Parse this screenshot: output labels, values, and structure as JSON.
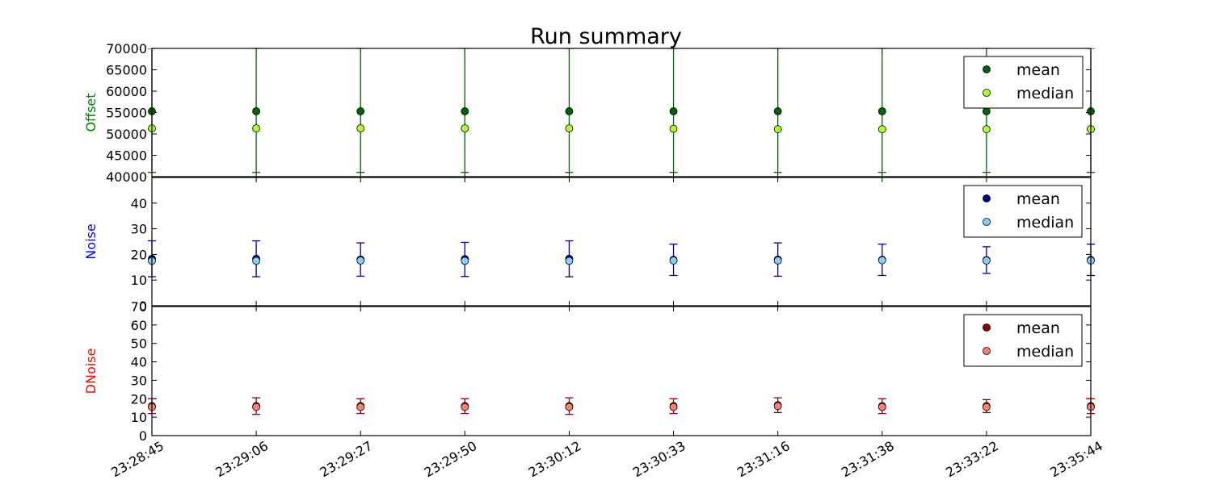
{
  "title": "Run summary",
  "chart_data": [
    {
      "type": "scatter",
      "ylabel": "Offset",
      "ylabel_color": "#008000",
      "ylim": [
        40000,
        70000
      ],
      "yticks": [
        40000,
        45000,
        50000,
        55000,
        60000,
        65000,
        70000
      ],
      "error_color": "#006400",
      "x": [
        "23:28:45",
        "23:29:06",
        "23:29:27",
        "23:29:50",
        "23:30:12",
        "23:30:33",
        "23:31:16",
        "23:31:38",
        "23:33:22",
        "23:35:44"
      ],
      "series": [
        {
          "name": "mean",
          "color": "#006400",
          "values": [
            55300,
            55300,
            55300,
            55300,
            55300,
            55300,
            55300,
            55300,
            55300,
            55300
          ],
          "err_low": [
            41000,
            41000,
            41000,
            41000,
            41000,
            41000,
            41000,
            41000,
            41000,
            41000
          ],
          "err_high": [
            70000,
            70000,
            70000,
            70000,
            70000,
            70000,
            70000,
            70000,
            70000,
            70000
          ]
        },
        {
          "name": "median",
          "color": "#adff2f",
          "values": [
            51300,
            51300,
            51300,
            51300,
            51300,
            51200,
            51100,
            51100,
            51100,
            51100
          ]
        }
      ],
      "legend": "top-right",
      "grid": false
    },
    {
      "type": "scatter",
      "ylabel": "Noise",
      "ylabel_color": "#0000ff",
      "ylim": [
        0,
        50
      ],
      "yticks": [
        0,
        10,
        20,
        30,
        40
      ],
      "error_color": "#00008b",
      "x": [
        "23:28:45",
        "23:29:06",
        "23:29:27",
        "23:29:50",
        "23:30:12",
        "23:30:33",
        "23:31:16",
        "23:31:38",
        "23:33:22",
        "23:35:44"
      ],
      "series": [
        {
          "name": "mean",
          "color": "#00008b",
          "values": [
            18.3,
            18.3,
            18.0,
            18.2,
            18.3,
            17.9,
            18.0,
            17.9,
            17.8,
            17.9
          ],
          "err_low": [
            11.3,
            11.3,
            11.5,
            11.4,
            11.3,
            11.8,
            11.5,
            11.8,
            12.6,
            11.8
          ],
          "err_high": [
            25.3,
            25.3,
            24.5,
            24.7,
            25.3,
            24.0,
            24.5,
            24.0,
            23.0,
            24.0
          ]
        },
        {
          "name": "median",
          "color": "#87cefa",
          "values": [
            17.5,
            17.5,
            17.6,
            17.5,
            17.5,
            17.6,
            17.6,
            17.7,
            17.6,
            17.6
          ]
        }
      ],
      "legend": "top-right",
      "grid": false
    },
    {
      "type": "scatter",
      "ylabel": "DNoise",
      "ylabel_color": "#ff0000",
      "ylim": [
        0,
        70
      ],
      "yticks": [
        0,
        10,
        20,
        30,
        40,
        50,
        60,
        70
      ],
      "error_color": "#8b0000",
      "x": [
        "23:28:45",
        "23:29:06",
        "23:29:27",
        "23:29:50",
        "23:30:12",
        "23:30:33",
        "23:31:16",
        "23:31:38",
        "23:33:22",
        "23:35:44"
      ],
      "series": [
        {
          "name": "mean",
          "color": "#8b0000",
          "values": [
            16,
            16,
            16,
            16,
            16,
            16,
            16.5,
            16,
            16,
            16
          ],
          "err_low": [
            12,
            11.5,
            12,
            12,
            11.5,
            12,
            12.5,
            12,
            12.5,
            12
          ],
          "err_high": [
            20,
            20.5,
            20,
            20,
            20.5,
            20,
            20.5,
            20,
            19.5,
            20
          ]
        },
        {
          "name": "median",
          "color": "#fa8072",
          "values": [
            15.5,
            15.5,
            15.5,
            15.5,
            15.5,
            15.5,
            16,
            15.5,
            15.5,
            15.5
          ]
        }
      ],
      "legend": "top-right",
      "grid": false
    }
  ]
}
